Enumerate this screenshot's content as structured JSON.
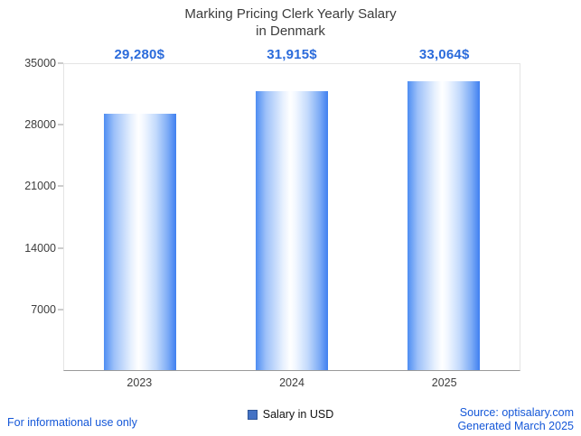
{
  "title": {
    "line1": "Marking Pricing Clerk Yearly Salary",
    "line2": "in Denmark"
  },
  "chart_data": {
    "type": "bar",
    "title": "Marking Pricing Clerk Yearly Salary in Denmark",
    "categories": [
      "2023",
      "2024",
      "2025"
    ],
    "values": [
      29280,
      31915,
      33064
    ],
    "value_labels": [
      "29,280$",
      "31,915$",
      "33,064$"
    ],
    "series_name": "Salary in USD",
    "xlabel": "",
    "ylabel": "",
    "ylim": [
      0,
      35000
    ],
    "yticks": [
      7000,
      14000,
      21000,
      28000,
      35000
    ],
    "grid": false,
    "legend_position": "bottom",
    "bar_color_edge": "#3f7ff0",
    "bar_color_mid": "#ffffff",
    "value_label_color": "#2b6bdb"
  },
  "legend": {
    "label": "Salary in USD",
    "swatch_color": "#4472c4"
  },
  "footer": {
    "left": "For informational use only",
    "source": "Source: optisalary.com",
    "generated": "Generated March 2025"
  }
}
